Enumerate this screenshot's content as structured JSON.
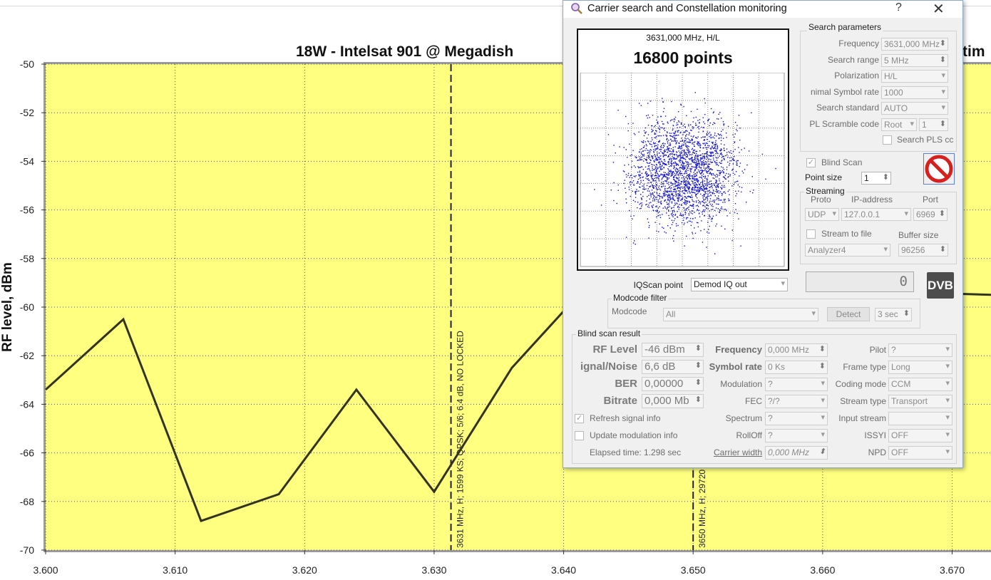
{
  "chart": {
    "title": "18W - Intelsat 901 @ Megadish",
    "title_right": "tim",
    "ylabel": "RF level, dBm",
    "bg_color": "#ffff80",
    "line_color": "#333322"
  },
  "chart_data": {
    "type": "line",
    "title": "18W - Intelsat 901 @ Megadish",
    "xlabel": "",
    "ylabel": "RF level, dBm",
    "xlim": [
      3.6,
      3.673
    ],
    "ylim": [
      -70,
      -50
    ],
    "x_ticks": [
      "3.600",
      "3.610",
      "3.620",
      "3.630",
      "3.640",
      "3.650",
      "3.660",
      "3.670"
    ],
    "y_ticks": [
      "-50",
      "-52",
      "-54",
      "-56",
      "-58",
      "-60",
      "-62",
      "-64",
      "-66",
      "-68",
      "-70"
    ],
    "grid": true,
    "series": [
      {
        "x": [
          3.6,
          3.606,
          3.612,
          3.618,
          3.624,
          3.63,
          3.636,
          3.642,
          3.6733
        ],
        "y": [
          -63.4,
          -60.5,
          -68.8,
          -67.7,
          -63.4,
          -67.6,
          -62.5,
          -59.0,
          -59.5
        ]
      }
    ],
    "annotations": [
      {
        "x": 3.6313,
        "label": "3631 MHz, H; 1599 KS; QPSK; 5/6; 6.4 dB, NO LOCKED"
      },
      {
        "x": 3.65,
        "label": "3650 MHz, H; 29720"
      }
    ]
  },
  "dialog": {
    "title": "Carrier search and Constellation monitoring",
    "help_label": "?",
    "close_label": "✕",
    "constellation": {
      "header": "3631,000 MHz, H/L",
      "points_label": "16800 points",
      "point_color": "#1010d0"
    },
    "search_params": {
      "title": "Search parameters",
      "frequency_label": "Frequency",
      "frequency_value": "3631,000 MHz",
      "search_range_label": "Search range",
      "search_range_value": "5 MHz",
      "polarization_label": "Polarization",
      "polarization_value": "H/L",
      "min_symbol_rate_label": "nimal Symbol rate",
      "min_symbol_rate_value": "1000",
      "search_standard_label": "Search standard",
      "search_standard_value": "AUTO",
      "pl_scramble_label": "PL Scramble code",
      "pl_scramble_type": "Root",
      "pl_scramble_value": "1",
      "search_pls_label": "Search PLS cc"
    },
    "blind_scan_label": "Blind Scan",
    "point_size_label": "Point size",
    "point_size_value": "1",
    "streaming": {
      "title": "Streaming",
      "proto_label": "Proto",
      "ip_label": "IP-address",
      "port_label": "Port",
      "proto_value": "UDP",
      "ip_value": "127.0.0.1",
      "port_value": "6969",
      "stream_to_file_label": "Stream to file",
      "buffer_size_label": "Buffer size",
      "file_value": "Analyzer4",
      "buffer_value": "96256"
    },
    "lcd_value": "0",
    "dvb_logo": "DVB",
    "iqscan_label": "IQScan point",
    "iqscan_value": "Demod IQ out",
    "modcode": {
      "title": "Modcode filter",
      "label": "Modcode",
      "value": "All",
      "detect_label": "Detect",
      "seconds_value": "3 sec"
    },
    "blind_result": {
      "title": "Blind scan result",
      "rf_level_label": "RF Level",
      "rf_level_value": "-46 dBm",
      "sn_label": "ignal/Noise",
      "sn_value": "6,6 dB",
      "ber_label": "BER",
      "ber_value": "0,00000",
      "bitrate_label": "Bitrate",
      "bitrate_value": "0,000 Mb",
      "frequency_label": "Frequency",
      "frequency_value": "0,000 MHz",
      "symbol_rate_label": "Symbol rate",
      "symbol_rate_value": "0 Ks",
      "modulation_label": "Modulation",
      "modulation_value": "?",
      "fec_label": "FEC",
      "fec_value": "?/?",
      "spectrum_label": "Spectrum",
      "spectrum_value": "?",
      "rolloff_label": "RollOff",
      "rolloff_value": "?",
      "carrier_width_label": "Carrier width",
      "carrier_width_value": "0,000 MHz",
      "pilot_label": "Pilot",
      "pilot_value": "?",
      "frame_type_label": "Frame type",
      "frame_type_value": "Long",
      "coding_mode_label": "Coding mode",
      "coding_mode_value": "CCM",
      "stream_type_label": "Stream type",
      "stream_type_value": "Transport",
      "input_stream_label": "Input stream",
      "input_stream_value": "",
      "issyi_label": "ISSYI",
      "issyi_value": "OFF",
      "npd_label": "NPD",
      "npd_value": "OFF",
      "refresh_label": "Refresh signal info",
      "update_mod_label": "Update modulation info",
      "elapsed_label": "Elapsed time: 1.298 sec"
    }
  }
}
